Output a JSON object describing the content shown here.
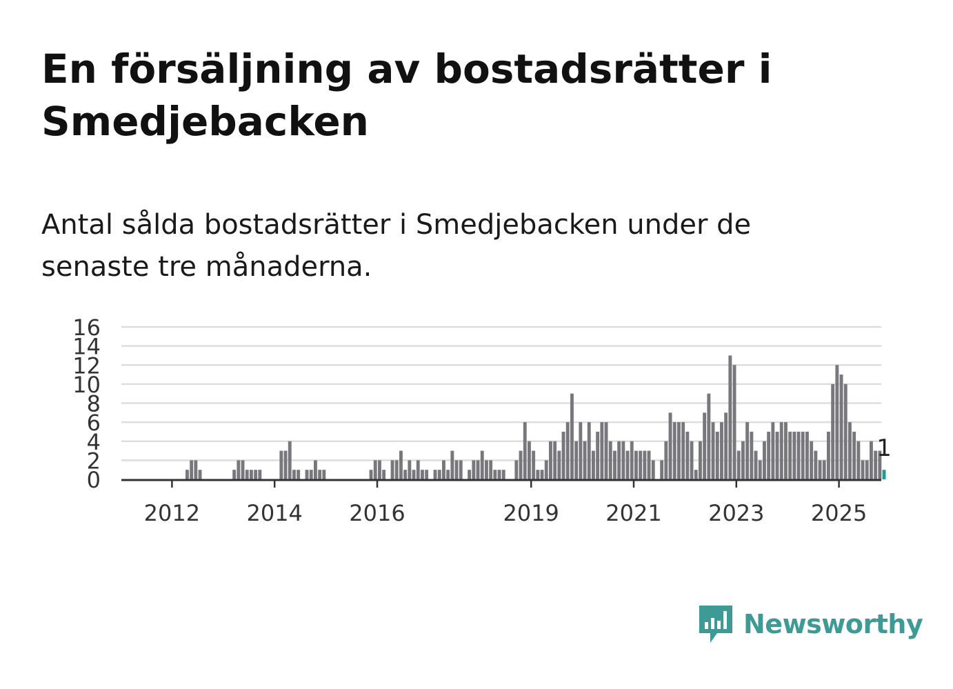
{
  "title": "En försäljning av bostadsrätter i Smedjebacken",
  "subtitle": "Antal sålda bostadsrätter i Smedjebacken under de senaste tre månaderna.",
  "brand": {
    "name": "Newsworthy",
    "icon": "newsworthy-logo-icon",
    "color": "#3d9a94"
  },
  "colors": {
    "bar": "#77777c",
    "highlight": "#1b9e96",
    "grid": "#dddddd",
    "axis": "#333333",
    "text": "#333333"
  },
  "chart_data": {
    "type": "bar",
    "x_unit": "month",
    "start": "2011-01",
    "ylim": [
      0,
      16
    ],
    "yticks": [
      0,
      2,
      4,
      6,
      8,
      10,
      12,
      14,
      16
    ],
    "xticks": [
      "2012",
      "2014",
      "2016",
      "2019",
      "2021",
      "2023",
      "2025"
    ],
    "grid": true,
    "highlight_last": true,
    "last_label": "1",
    "values": [
      0,
      0,
      0,
      0,
      0,
      0,
      0,
      0,
      0,
      0,
      0,
      0,
      0,
      0,
      0,
      1,
      2,
      2,
      1,
      0,
      0,
      0,
      0,
      0,
      0,
      0,
      1,
      2,
      2,
      1,
      1,
      1,
      1,
      0,
      0,
      0,
      0,
      3,
      3,
      4,
      1,
      1,
      0,
      1,
      1,
      2,
      1,
      1,
      0,
      0,
      0,
      0,
      0,
      0,
      0,
      0,
      0,
      0,
      1,
      2,
      2,
      1,
      0,
      2,
      2,
      3,
      1,
      2,
      1,
      2,
      1,
      1,
      0,
      1,
      1,
      2,
      1,
      3,
      2,
      2,
      0,
      1,
      2,
      2,
      3,
      2,
      2,
      1,
      1,
      1,
      0,
      0,
      2,
      3,
      6,
      4,
      3,
      1,
      1,
      2,
      4,
      4,
      3,
      5,
      6,
      9,
      4,
      6,
      4,
      6,
      3,
      5,
      6,
      6,
      4,
      3,
      4,
      4,
      3,
      4,
      3,
      3,
      3,
      3,
      2,
      0,
      2,
      4,
      7,
      6,
      6,
      6,
      5,
      4,
      1,
      4,
      7,
      9,
      6,
      5,
      6,
      7,
      13,
      12,
      3,
      4,
      6,
      5,
      3,
      2,
      4,
      5,
      6,
      5,
      6,
      6,
      5,
      5,
      5,
      5,
      5,
      4,
      3,
      2,
      2,
      5,
      10,
      12,
      11,
      10,
      6,
      5,
      4,
      2,
      2,
      4,
      3,
      3,
      1
    ]
  }
}
